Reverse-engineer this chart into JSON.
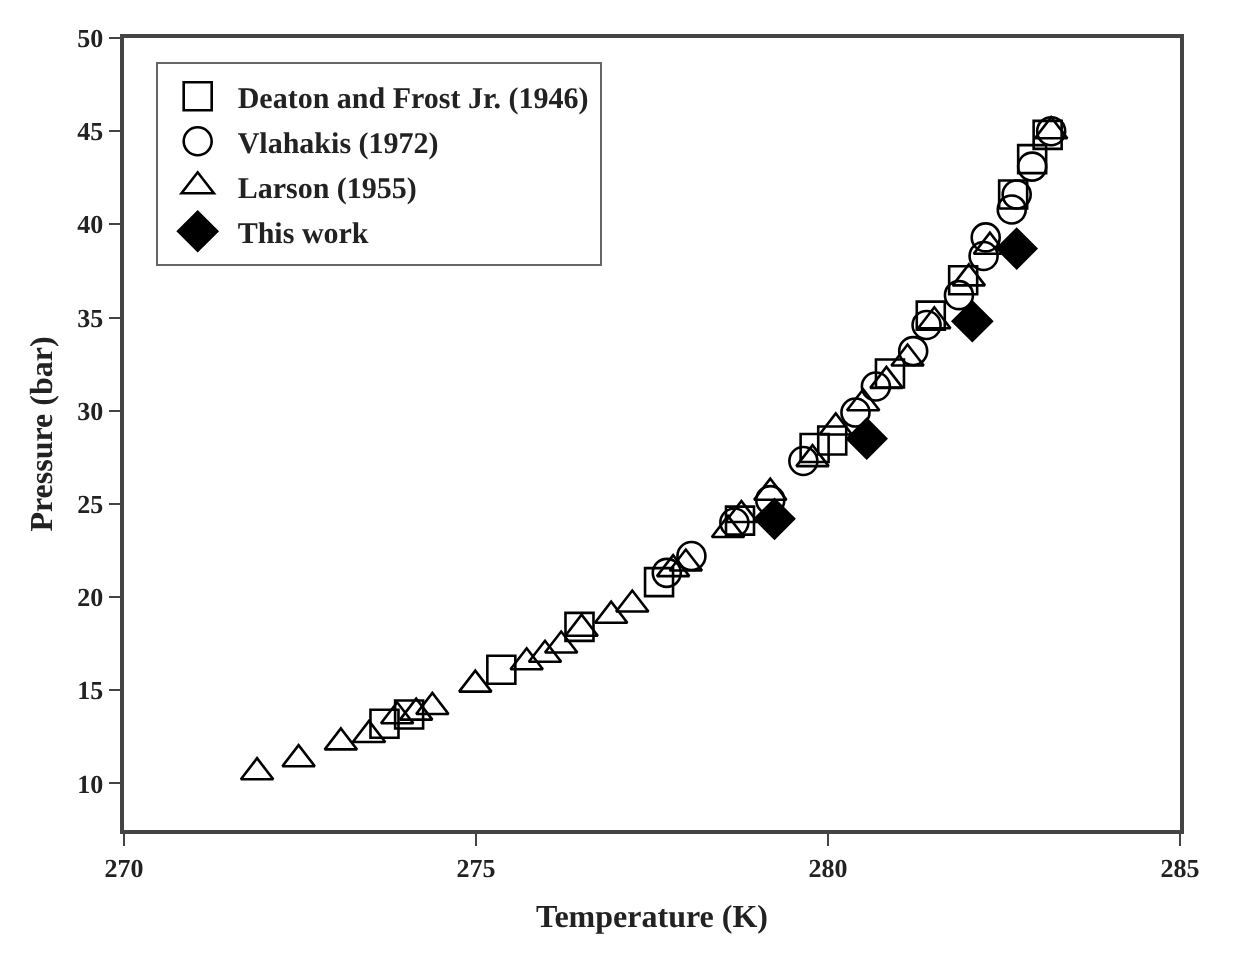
{
  "chart_data": {
    "type": "scatter",
    "xlabel": "Temperature (K)",
    "ylabel": "Pressure (bar)",
    "xlim": [
      270,
      285
    ],
    "ylim": [
      7.5,
      50
    ],
    "xticks": [
      270,
      275,
      280,
      285
    ],
    "yticks": [
      10,
      15,
      20,
      25,
      30,
      35,
      40,
      45,
      50
    ],
    "legend": "top left",
    "series": [
      {
        "name": "Deaton and Frost Jr. (1946)",
        "color": "#000000",
        "marker": "square",
        "x": [
          273.7,
          274.05,
          275.36,
          276.47,
          277.6,
          278.75,
          279.81,
          280.06,
          280.88,
          281.46,
          281.92,
          282.63,
          282.9,
          283.12
        ],
        "values": [
          13.2,
          13.7,
          16.1,
          18.4,
          20.8,
          24.1,
          28.0,
          28.4,
          32.0,
          35.1,
          37.0,
          41.6,
          43.5,
          44.8
        ]
      },
      {
        "name": "Vlahakis (1972)",
        "color": "#000000",
        "marker": "circle",
        "x": [
          277.71,
          278.06,
          278.67,
          279.18,
          279.65,
          280.39,
          280.68,
          281.21,
          281.4,
          281.86,
          282.21,
          282.24,
          282.61,
          282.68,
          282.9,
          283.17
        ],
        "values": [
          21.3,
          22.2,
          24.0,
          25.2,
          27.3,
          29.9,
          31.3,
          33.2,
          34.6,
          36.2,
          38.3,
          39.3,
          40.8,
          41.6,
          43.1,
          45.0
        ]
      },
      {
        "name": "Larson (1955)",
        "color": "#000000",
        "marker": "triangle",
        "x": [
          271.89,
          272.48,
          273.08,
          273.48,
          273.88,
          274.15,
          274.38,
          274.99,
          275.72,
          275.98,
          276.21,
          276.5,
          276.92,
          277.22,
          277.8,
          277.98,
          278.58,
          278.77,
          279.18,
          279.78,
          280.11,
          280.5,
          280.83,
          281.13,
          281.51,
          282.0,
          282.3,
          283.17
        ],
        "values": [
          10.6,
          11.3,
          12.2,
          12.6,
          13.6,
          13.8,
          14.1,
          15.3,
          16.5,
          16.9,
          17.4,
          18.3,
          19.0,
          19.6,
          21.5,
          21.8,
          23.6,
          24.4,
          25.6,
          27.4,
          29.1,
          30.4,
          31.6,
          32.8,
          34.8,
          37.1,
          38.8,
          45.0
        ]
      },
      {
        "name": "This work",
        "color": "#000000",
        "marker": "diamond",
        "x": [
          279.24,
          280.55,
          282.05,
          282.68
        ],
        "values": [
          24.2,
          28.5,
          34.8,
          38.7
        ]
      }
    ]
  }
}
